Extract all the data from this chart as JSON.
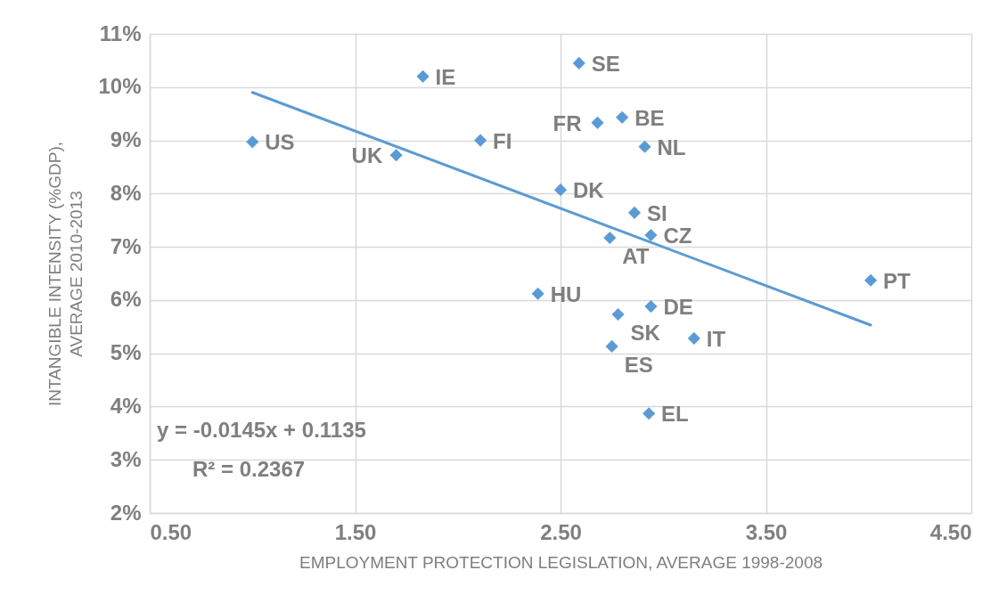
{
  "chart_data": {
    "type": "scatter",
    "xlabel": "EMPLOYMENT PROTECTION LEGISLATION, AVERAGE 1998-2008",
    "ylabel": "INTANGIBLE INTENSITY (%GDP), AVERAGE 2010-2013",
    "xlim": [
      0.5,
      4.5
    ],
    "xticks": [
      {
        "value": 0.5,
        "label": "0.50"
      },
      {
        "value": 1.5,
        "label": "1.50"
      },
      {
        "value": 2.5,
        "label": "2.50"
      },
      {
        "value": 3.5,
        "label": "3.50"
      },
      {
        "value": 4.5,
        "label": "4.50"
      }
    ],
    "ylim": [
      2,
      11
    ],
    "yticks": [
      {
        "value": 2,
        "label": "2%"
      },
      {
        "value": 3,
        "label": "3%"
      },
      {
        "value": 4,
        "label": "4%"
      },
      {
        "value": 5,
        "label": "5%"
      },
      {
        "value": 6,
        "label": "6%"
      },
      {
        "value": 7,
        "label": "7%"
      },
      {
        "value": 8,
        "label": "8%"
      },
      {
        "value": 9,
        "label": "9%"
      },
      {
        "value": 10,
        "label": "10%"
      },
      {
        "value": 11,
        "label": "11%"
      }
    ],
    "grid": true,
    "series": [
      {
        "type": "scatter",
        "color": "#5b9bd5",
        "marker": "diamond",
        "x": [
          1.0,
          1.83,
          1.7,
          2.11,
          2.59,
          2.68,
          2.8,
          2.91,
          2.5,
          2.86,
          2.74,
          2.94,
          4.01,
          2.39,
          2.78,
          2.94,
          3.15,
          2.75,
          2.93
        ],
        "values": [
          8.97,
          10.2,
          8.72,
          9.0,
          10.45,
          9.33,
          9.43,
          8.88,
          8.07,
          7.64,
          7.17,
          7.22,
          6.37,
          6.12,
          5.73,
          5.88,
          5.28,
          5.13,
          3.87
        ]
      },
      {
        "type": "line",
        "color": "#5b9bd5",
        "marker": "none",
        "x": [
          1.0,
          4.01
        ],
        "values": [
          9.9,
          5.53
        ]
      }
    ],
    "annotations": [
      {
        "text": "US",
        "x": 1.0,
        "y": 8.97
      },
      {
        "text": "IE",
        "x": 1.83,
        "y": 10.2
      },
      {
        "text": "UK",
        "x": 1.7,
        "y": 8.72
      },
      {
        "text": "FI",
        "x": 2.11,
        "y": 9.0
      },
      {
        "text": "SE",
        "x": 2.59,
        "y": 10.45
      },
      {
        "text": "FR",
        "x": 2.68,
        "y": 9.33
      },
      {
        "text": "BE",
        "x": 2.8,
        "y": 9.43
      },
      {
        "text": "NL",
        "x": 2.91,
        "y": 8.88
      },
      {
        "text": "DK",
        "x": 2.5,
        "y": 8.07
      },
      {
        "text": "SI",
        "x": 2.86,
        "y": 7.64
      },
      {
        "text": "AT",
        "x": 2.74,
        "y": 7.17
      },
      {
        "text": "CZ",
        "x": 2.94,
        "y": 7.22
      },
      {
        "text": "PT",
        "x": 4.01,
        "y": 6.37
      },
      {
        "text": "HU",
        "x": 2.39,
        "y": 6.12
      },
      {
        "text": "SK",
        "x": 2.78,
        "y": 5.73
      },
      {
        "text": "DE",
        "x": 2.94,
        "y": 5.88
      },
      {
        "text": "IT",
        "x": 3.15,
        "y": 5.28
      },
      {
        "text": "ES",
        "x": 2.75,
        "y": 5.13
      },
      {
        "text": "EL",
        "x": 2.93,
        "y": 3.87
      },
      "y = -0.0145x + 0.1135",
      "R² = 0.2367"
    ]
  }
}
